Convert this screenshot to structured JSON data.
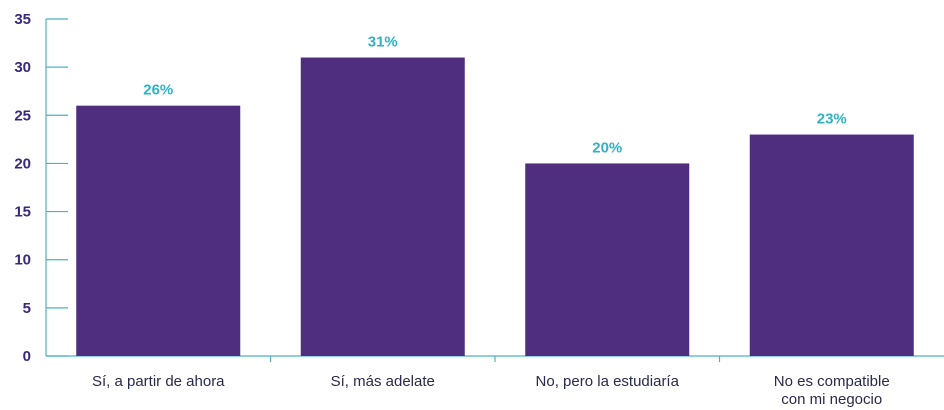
{
  "chart_data": {
    "type": "bar",
    "categories": [
      [
        "Sí, a partir de ahora"
      ],
      [
        "Sí, más adelate"
      ],
      [
        "No, pero la estudiaría"
      ],
      [
        "No es compatible",
        "con mi negocio"
      ]
    ],
    "values": [
      26,
      31,
      20,
      23
    ],
    "data_labels": [
      "26%",
      "31%",
      "20%",
      "23%"
    ],
    "title": "",
    "xlabel": "",
    "ylabel": "",
    "ylim": [
      0,
      35
    ],
    "yticks": [
      "0",
      "5",
      "10",
      "15",
      "20",
      "25",
      "30",
      "35"
    ],
    "grid": false,
    "legend": "none",
    "colors": {
      "bar": "#4f2d7f",
      "data_label": "#2fb3c4",
      "axis": "#4ab3c4",
      "tick_label": "#3a2878",
      "category_label": "#2a2a4a"
    }
  }
}
